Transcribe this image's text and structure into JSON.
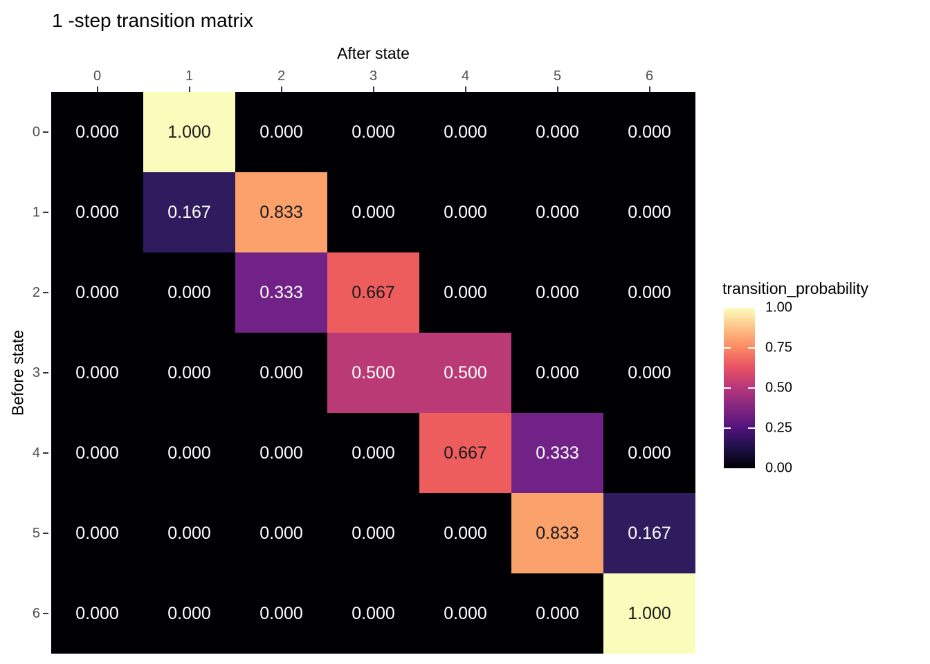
{
  "title": "1 -step transition matrix",
  "colors": {
    "background": "#FFFFFF",
    "axis_text": "#4D4D4D",
    "tick_mark": "#333333",
    "title_text": "#000000",
    "cell_text_light": "#FFFFFF",
    "cell_text_dark": "#1A1A1A"
  },
  "chart_data": {
    "type": "heatmap",
    "title": "1 -step transition matrix",
    "xlabel": "After state",
    "ylabel": "Before state",
    "x_axis_position": "top",
    "grid": false,
    "x_ticks": [
      "0",
      "1",
      "2",
      "3",
      "4",
      "5",
      "6"
    ],
    "y_ticks": [
      "0",
      "1",
      "2",
      "3",
      "4",
      "5",
      "6"
    ],
    "matrix": [
      [
        "0.000",
        "1.000",
        "0.000",
        "0.000",
        "0.000",
        "0.000",
        "0.000"
      ],
      [
        "0.000",
        "0.167",
        "0.833",
        "0.000",
        "0.000",
        "0.000",
        "0.000"
      ],
      [
        "0.000",
        "0.000",
        "0.333",
        "0.667",
        "0.000",
        "0.000",
        "0.000"
      ],
      [
        "0.000",
        "0.000",
        "0.000",
        "0.500",
        "0.500",
        "0.000",
        "0.000"
      ],
      [
        "0.000",
        "0.000",
        "0.000",
        "0.000",
        "0.667",
        "0.333",
        "0.000"
      ],
      [
        "0.000",
        "0.000",
        "0.000",
        "0.000",
        "0.000",
        "0.833",
        "0.167"
      ],
      [
        "0.000",
        "0.000",
        "0.000",
        "0.000",
        "0.000",
        "0.000",
        "1.000"
      ]
    ],
    "palette": {
      "0.000": {
        "bg": "#000004",
        "text": "#FFFFFF"
      },
      "0.167": {
        "bg": "#2E1C5F",
        "text": "#FFFFFF"
      },
      "0.333": {
        "bg": "#702287",
        "text": "#FFFFFF"
      },
      "0.500": {
        "bg": "#BA3A75",
        "text": "#FFFFFF"
      },
      "0.667": {
        "bg": "#EE5D5E",
        "text": "#1A1A1A"
      },
      "0.833": {
        "bg": "#FBA26C",
        "text": "#1A1A1A"
      },
      "1.000": {
        "bg": "#FAFCBB",
        "text": "#1A1A1A"
      }
    },
    "legend": {
      "title": "transition_probability",
      "position": "right",
      "ticks": [
        "1.00",
        "0.75",
        "0.50",
        "0.25",
        "0.00"
      ],
      "colormap": "magma",
      "range": [
        0,
        1
      ],
      "gradient_stops": [
        "#000004",
        "#1D1147",
        "#51127C",
        "#822681",
        "#B63679",
        "#E65164",
        "#FB8861",
        "#FEC287",
        "#FCFDBF"
      ]
    }
  }
}
